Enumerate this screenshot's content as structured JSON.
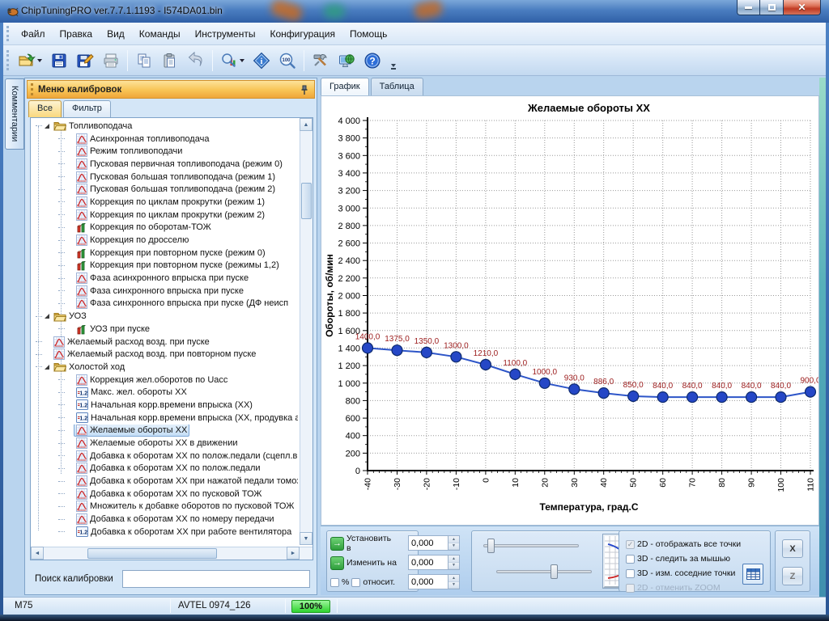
{
  "window": {
    "title": "ChipTuningPRO ver.7.7.1.1193 - I574DA01.bin"
  },
  "menu": {
    "items": [
      "Файл",
      "Правка",
      "Вид",
      "Команды",
      "Инструменты",
      "Конфигурация",
      "Помощь"
    ]
  },
  "toolbar": {
    "buttons": [
      "open",
      "save",
      "save-as",
      "print",
      "copy",
      "paste",
      "undo",
      "chart-view",
      "info",
      "zoom-100",
      "tools",
      "web-update",
      "help"
    ]
  },
  "comments_tab": "Комментарии",
  "sidebar": {
    "header": "Меню калибровок",
    "tabs": [
      {
        "label": "Все",
        "active": true
      },
      {
        "label": "Фильтр",
        "active": false
      }
    ],
    "search_label": "Поиск калибровки",
    "search_value": "",
    "tree": [
      {
        "d": 0,
        "t": "folder",
        "label": "Топливоподача"
      },
      {
        "d": 1,
        "t": "curve",
        "label": "Асинхронная топливоподача"
      },
      {
        "d": 1,
        "t": "curve",
        "label": "Режим топливоподачи"
      },
      {
        "d": 1,
        "t": "curve",
        "label": "Пусковая первичная топливоподача (режим 0)"
      },
      {
        "d": 1,
        "t": "curve",
        "label": "Пусковая большая топливоподача (режим 1)"
      },
      {
        "d": 1,
        "t": "curve",
        "label": "Пусковая большая топливоподача (режим 2)"
      },
      {
        "d": 1,
        "t": "curve",
        "label": "Коррекция по циклам прокрутки (режим 1)"
      },
      {
        "d": 1,
        "t": "curve",
        "label": "Коррекция по циклам прокрутки (режим 2)"
      },
      {
        "d": 1,
        "t": "bars",
        "label": "Коррекция по оборотам-ТОЖ"
      },
      {
        "d": 1,
        "t": "curve",
        "label": "Коррекция по дросселю"
      },
      {
        "d": 1,
        "t": "bars",
        "label": "Коррекция при повторном пуске (режим 0)"
      },
      {
        "d": 1,
        "t": "bars",
        "label": "Коррекция при повторном пуске (режимы 1,2)"
      },
      {
        "d": 1,
        "t": "curve",
        "label": "Фаза асинхронного впрыска при пуске"
      },
      {
        "d": 1,
        "t": "curve",
        "label": "Фаза синхронного впрыска при пуске"
      },
      {
        "d": 1,
        "t": "curve",
        "label": "Фаза синхронного впрыска при пуске (ДФ неисп"
      },
      {
        "d": 0,
        "t": "folder",
        "label": "УОЗ"
      },
      {
        "d": 1,
        "t": "bars",
        "label": "УОЗ при пуске"
      },
      {
        "d": 0,
        "t": "curve",
        "label": "Желаемый расход возд. при пуске"
      },
      {
        "d": 0,
        "t": "curve",
        "label": "Желаемый расход возд. при повторном пуске"
      },
      {
        "d": 0,
        "t": "folder",
        "label": "Холостой ход"
      },
      {
        "d": 1,
        "t": "curve",
        "label": "Коррекция жел.оборотов по Uacc"
      },
      {
        "d": 1,
        "t": "num",
        "label": "Макс. жел. обороты ХХ"
      },
      {
        "d": 1,
        "t": "num",
        "label": "Начальная корр.времени впрыска (ХХ)"
      },
      {
        "d": 1,
        "t": "num",
        "label": "Начальная корр.времени впрыска (ХХ, продувка ад"
      },
      {
        "d": 1,
        "t": "curve",
        "label": "Желаемые обороты ХХ",
        "sel": true
      },
      {
        "d": 1,
        "t": "curve",
        "label": "Желаемые обороты ХХ в движении"
      },
      {
        "d": 1,
        "t": "curve",
        "label": "Добавка к оборотам ХХ по полож.педали (сцепл.вы"
      },
      {
        "d": 1,
        "t": "curve",
        "label": "Добавка к оборотам ХХ по полож.педали"
      },
      {
        "d": 1,
        "t": "curve",
        "label": "Добавка к оборотам ХХ при нажатой педали томоза"
      },
      {
        "d": 1,
        "t": "curve",
        "label": "Добавка к оборотам ХХ по пусковой ТОЖ"
      },
      {
        "d": 1,
        "t": "curve",
        "label": "Множитель к добавке оборотов по пусковой ТОЖ"
      },
      {
        "d": 1,
        "t": "curve",
        "label": "Добавка к оборотам ХХ по номеру передачи"
      },
      {
        "d": 1,
        "t": "num",
        "label": "Добавка к оборотам ХХ при работе вентилятора"
      }
    ]
  },
  "main": {
    "tabs": [
      "График",
      "Таблица"
    ]
  },
  "chart_data": {
    "type": "line",
    "title": "Желаемые обороты ХХ",
    "xlabel": "Температура, град.С",
    "ylabel": "Обороты, об/мин",
    "x": [
      -40,
      -30,
      -20,
      -10,
      0,
      10,
      20,
      30,
      40,
      50,
      60,
      70,
      80,
      90,
      100,
      110
    ],
    "values": [
      1400,
      1375,
      1350,
      1300,
      1210,
      1100,
      1000,
      930,
      886,
      850,
      840,
      840,
      840,
      840,
      840,
      900
    ],
    "point_labels": [
      "1400,0",
      "1375,0",
      "1350,0",
      "1300,0",
      "1210,0",
      "1100,0",
      "1000,0",
      "930,0",
      "886,0",
      "850,0",
      "840,0",
      "840,0",
      "840,0",
      "840,0",
      "840,0",
      "900,0"
    ],
    "ylim": [
      0,
      4000
    ],
    "ytick_step": 200,
    "xtick_step": 10,
    "grid": true,
    "legend": "none",
    "line_color": "#2d55c8",
    "marker_color": "#2547c6",
    "label_color": "#9b1b1b"
  },
  "controls": {
    "set_to": "Установить в",
    "change_by": "Изменить на",
    "percent": "%",
    "relative": "относит.",
    "values": [
      "0,000",
      "0,000",
      "0,000"
    ],
    "checkboxes": [
      {
        "label": "2D - отображать все точки",
        "checked": true,
        "disabled": true
      },
      {
        "label": "3D - следить за мышью",
        "checked": false,
        "disabled": false
      },
      {
        "label": "3D - изм. соседние точки",
        "checked": false,
        "disabled": false
      },
      {
        "label": "2D - отменить ZOOM",
        "checked": false,
        "disabled": true
      }
    ],
    "buttons": [
      "X",
      "Z"
    ]
  },
  "statusbar": {
    "left": "M75",
    "center": "AVTEL 0974_126",
    "progress": "100%"
  },
  "colors": {
    "header_orange": "#f8c455",
    "selection_blue": "#c5def5",
    "progress_green": "#2ed32e"
  }
}
